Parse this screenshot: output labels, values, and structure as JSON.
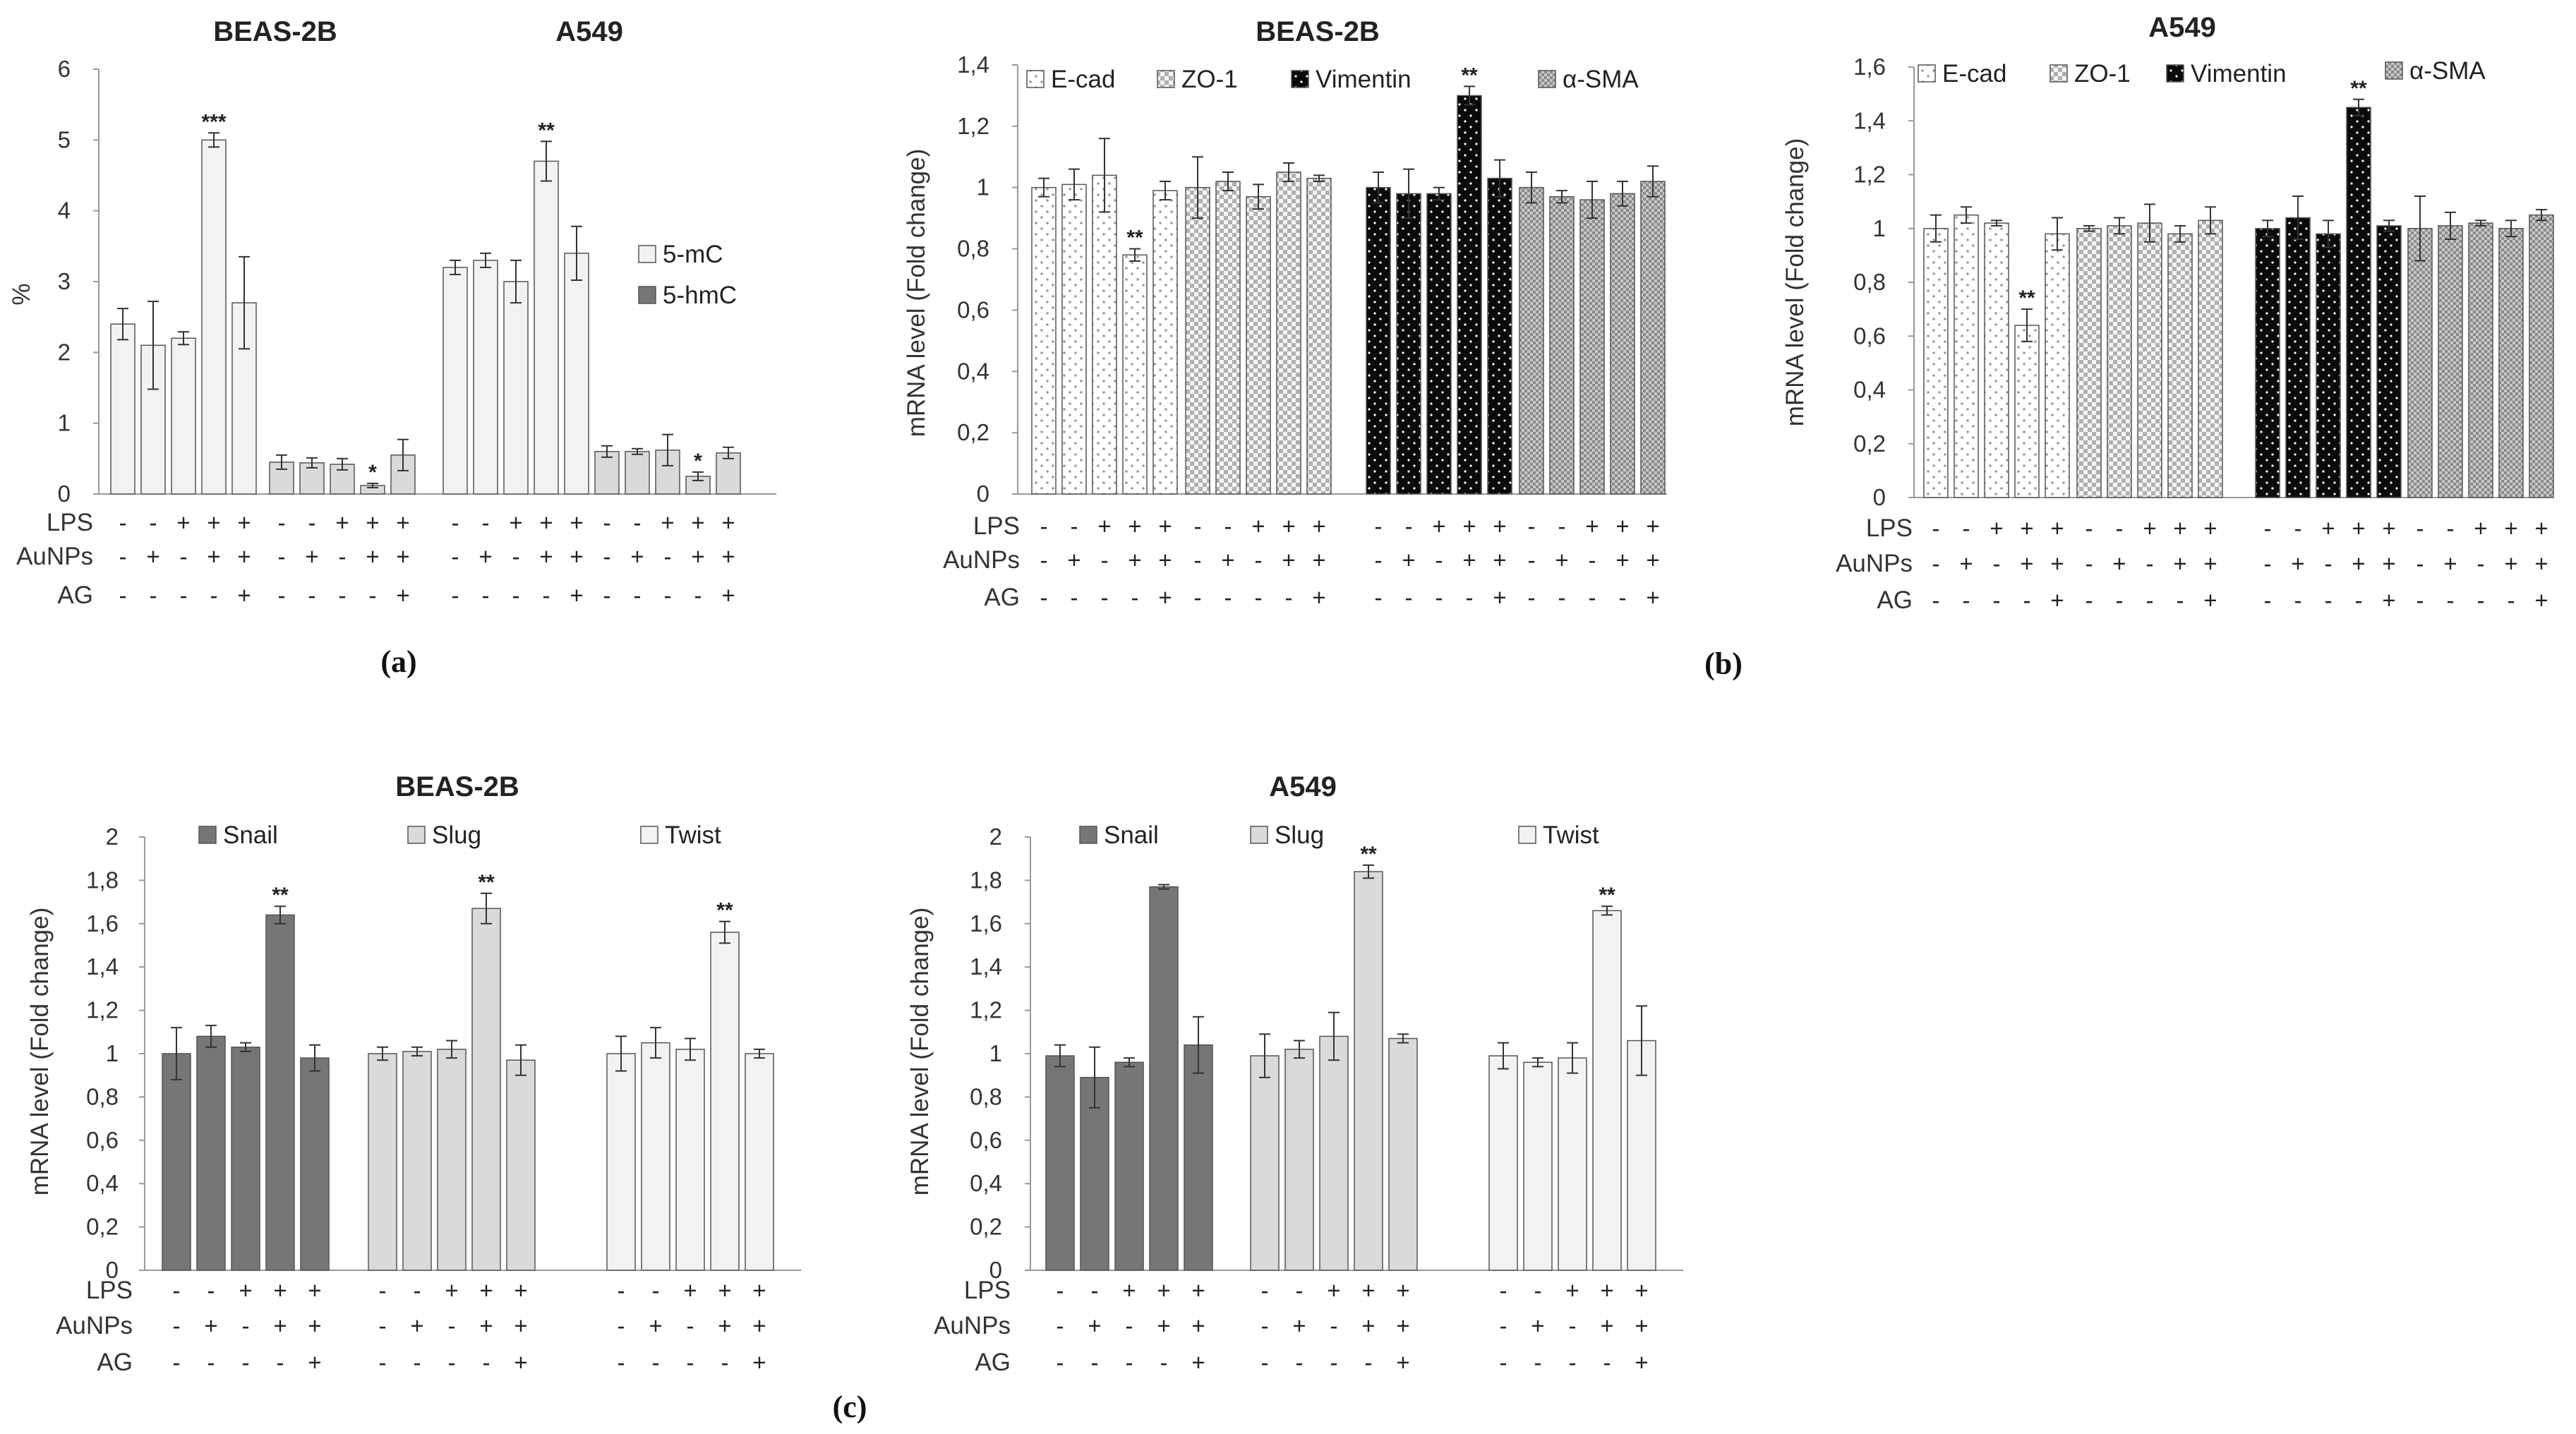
{
  "panel_labels": [
    "(a)",
    "(b)",
    "(c)"
  ],
  "row_labels": [
    "LPS",
    "AuNPs",
    "AG"
  ],
  "signs": {
    "LPS": [
      "-",
      "-",
      "+",
      "+",
      "+"
    ],
    "AuNPs": [
      "-",
      "+",
      "-",
      "+",
      "+"
    ],
    "AG": [
      "-",
      "-",
      "-",
      "-",
      "+"
    ]
  },
  "colors": {
    "light": "#f2f2f2",
    "mid": "#dadada",
    "dark": "#767676",
    "black": "#0a0a0a",
    "hatch": "#d4d4d4",
    "edge": "#555555"
  },
  "chart_data": [
    {
      "id": "a",
      "type": "bar",
      "ylabel": "%",
      "ylim": [
        0,
        6
      ],
      "yticks": [
        "0",
        "1",
        "2",
        "3",
        "4",
        "5",
        "6"
      ],
      "xlabel": "",
      "group_titles": [
        "BEAS-2B",
        "A549"
      ],
      "legend": [
        "5-mC",
        "5-hmC"
      ],
      "groups": [
        {
          "cell": "BEAS-2B",
          "series": "5-mC",
          "values": [
            2.4,
            2.1,
            2.2,
            5.0,
            2.7
          ],
          "errors": [
            0.22,
            0.62,
            0.09,
            0.1,
            0.65
          ],
          "stars": [
            "",
            "",
            "",
            "***",
            ""
          ]
        },
        {
          "cell": "BEAS-2B",
          "series": "5-hmC",
          "values": [
            0.45,
            0.44,
            0.42,
            0.12,
            0.55
          ],
          "errors": [
            0.1,
            0.07,
            0.08,
            0.03,
            0.22
          ],
          "stars": [
            "",
            "",
            "",
            "*",
            ""
          ]
        },
        {
          "cell": "A549",
          "series": "5-mC",
          "values": [
            3.2,
            3.3,
            3.0,
            4.7,
            3.4
          ],
          "errors": [
            0.1,
            0.1,
            0.3,
            0.28,
            0.38
          ],
          "stars": [
            "",
            "",
            "",
            "**",
            ""
          ]
        },
        {
          "cell": "A549",
          "series": "5-hmC",
          "values": [
            0.6,
            0.6,
            0.62,
            0.25,
            0.58
          ],
          "errors": [
            0.08,
            0.04,
            0.22,
            0.06,
            0.08
          ],
          "stars": [
            "",
            "",
            "",
            "*",
            ""
          ]
        }
      ]
    },
    {
      "id": "b1",
      "type": "bar",
      "title": "BEAS-2B",
      "ylabel": "mRNA level (Fold change)",
      "ylim": [
        0,
        1.4
      ],
      "yticks": [
        "0",
        "0,2",
        "0,4",
        "0,6",
        "0,8",
        "1",
        "1,2",
        "1,4"
      ],
      "legend": [
        "E-cad",
        "ZO-1",
        "Vimentin",
        "α-SMA"
      ],
      "groups": [
        {
          "series": "E-cad",
          "values": [
            1.0,
            1.01,
            1.04,
            0.78,
            0.99
          ],
          "errors": [
            0.03,
            0.05,
            0.12,
            0.02,
            0.03
          ],
          "stars": [
            "",
            "",
            "",
            "**",
            ""
          ]
        },
        {
          "series": "ZO-1",
          "values": [
            1.0,
            1.02,
            0.97,
            1.05,
            1.03
          ],
          "errors": [
            0.1,
            0.03,
            0.04,
            0.03,
            0.01
          ],
          "stars": [
            "",
            "",
            "",
            "",
            ""
          ]
        },
        {
          "series": "Vimentin",
          "values": [
            1.0,
            0.98,
            0.98,
            1.3,
            1.03
          ],
          "errors": [
            0.05,
            0.08,
            0.02,
            0.03,
            0.06
          ],
          "stars": [
            "",
            "",
            "",
            "**",
            ""
          ]
        },
        {
          "series": "α-SMA",
          "values": [
            1.0,
            0.97,
            0.96,
            0.98,
            1.02
          ],
          "errors": [
            0.05,
            0.02,
            0.06,
            0.04,
            0.05
          ],
          "stars": [
            "",
            "",
            "",
            "",
            ""
          ]
        }
      ]
    },
    {
      "id": "b2",
      "type": "bar",
      "title": "A549",
      "ylabel": "mRNA level (Fold change)",
      "ylim": [
        0,
        1.6
      ],
      "yticks": [
        "0",
        "0,2",
        "0,4",
        "0,6",
        "0,8",
        "1",
        "1,2",
        "1,4",
        "1,6"
      ],
      "legend": [
        "E-cad",
        "ZO-1",
        "Vimentin",
        "α-SMA"
      ],
      "groups": [
        {
          "series": "E-cad",
          "values": [
            1.0,
            1.05,
            1.02,
            0.64,
            0.98
          ],
          "errors": [
            0.05,
            0.03,
            0.01,
            0.06,
            0.06
          ],
          "stars": [
            "",
            "",
            "",
            "**",
            ""
          ]
        },
        {
          "series": "ZO-1",
          "values": [
            1.0,
            1.01,
            1.02,
            0.98,
            1.03
          ],
          "errors": [
            0.01,
            0.03,
            0.07,
            0.03,
            0.05
          ],
          "stars": [
            "",
            "",
            "",
            "",
            ""
          ]
        },
        {
          "series": "Vimentin",
          "values": [
            1.0,
            1.04,
            0.98,
            1.45,
            1.01
          ],
          "errors": [
            0.03,
            0.08,
            0.05,
            0.03,
            0.02
          ],
          "stars": [
            "",
            "",
            "",
            "**",
            ""
          ]
        },
        {
          "series": "α-SMA",
          "values": [
            1.0,
            1.01,
            1.02,
            1.0,
            1.05
          ],
          "errors": [
            0.12,
            0.05,
            0.01,
            0.03,
            0.02
          ],
          "stars": [
            "",
            "",
            "",
            "",
            ""
          ]
        }
      ]
    },
    {
      "id": "c1",
      "type": "bar",
      "title": "BEAS-2B",
      "ylabel": "mRNA level (Fold change)",
      "ylim": [
        0,
        2
      ],
      "yticks": [
        "0",
        "0,2",
        "0,4",
        "0,6",
        "0,8",
        "1",
        "1,2",
        "1,4",
        "1,6",
        "1,8",
        "2"
      ],
      "legend": [
        "Snail",
        "Slug",
        "Twist"
      ],
      "groups": [
        {
          "series": "Snail",
          "values": [
            1.0,
            1.08,
            1.03,
            1.64,
            0.98
          ],
          "errors": [
            0.12,
            0.05,
            0.02,
            0.04,
            0.06
          ],
          "stars": [
            "",
            "",
            "",
            "**",
            ""
          ]
        },
        {
          "series": "Slug",
          "values": [
            1.0,
            1.01,
            1.02,
            1.67,
            0.97
          ],
          "errors": [
            0.03,
            0.02,
            0.04,
            0.07,
            0.07
          ],
          "stars": [
            "",
            "",
            "",
            "**",
            ""
          ]
        },
        {
          "series": "Twist",
          "values": [
            1.0,
            1.05,
            1.02,
            1.56,
            1.0
          ],
          "errors": [
            0.08,
            0.07,
            0.05,
            0.05,
            0.02
          ],
          "stars": [
            "",
            "",
            "",
            "**",
            ""
          ]
        }
      ]
    },
    {
      "id": "c2",
      "type": "bar",
      "title": "A549",
      "ylabel": "mRNA level (Fold change)",
      "ylim": [
        0,
        2
      ],
      "yticks": [
        "0",
        "0,2",
        "0,4",
        "0,6",
        "0,8",
        "1",
        "1,2",
        "1,4",
        "1,6",
        "1,8",
        "2"
      ],
      "legend": [
        "Snail",
        "Slug",
        "Twist"
      ],
      "groups": [
        {
          "series": "Snail",
          "values": [
            0.99,
            0.89,
            0.96,
            1.77,
            1.04
          ],
          "errors": [
            0.05,
            0.14,
            0.02,
            0.01,
            0.13
          ],
          "stars": [
            "",
            "",
            "",
            "",
            ""
          ]
        },
        {
          "series": "Slug",
          "values": [
            0.99,
            1.02,
            1.08,
            1.84,
            1.07
          ],
          "errors": [
            0.1,
            0.04,
            0.11,
            0.03,
            0.02
          ],
          "stars": [
            "",
            "",
            "",
            "**",
            ""
          ]
        },
        {
          "series": "Twist",
          "values": [
            0.99,
            0.96,
            0.98,
            1.66,
            1.06
          ],
          "errors": [
            0.06,
            0.02,
            0.07,
            0.02,
            0.16
          ],
          "stars": [
            "",
            "",
            "",
            "**",
            ""
          ]
        }
      ]
    }
  ]
}
